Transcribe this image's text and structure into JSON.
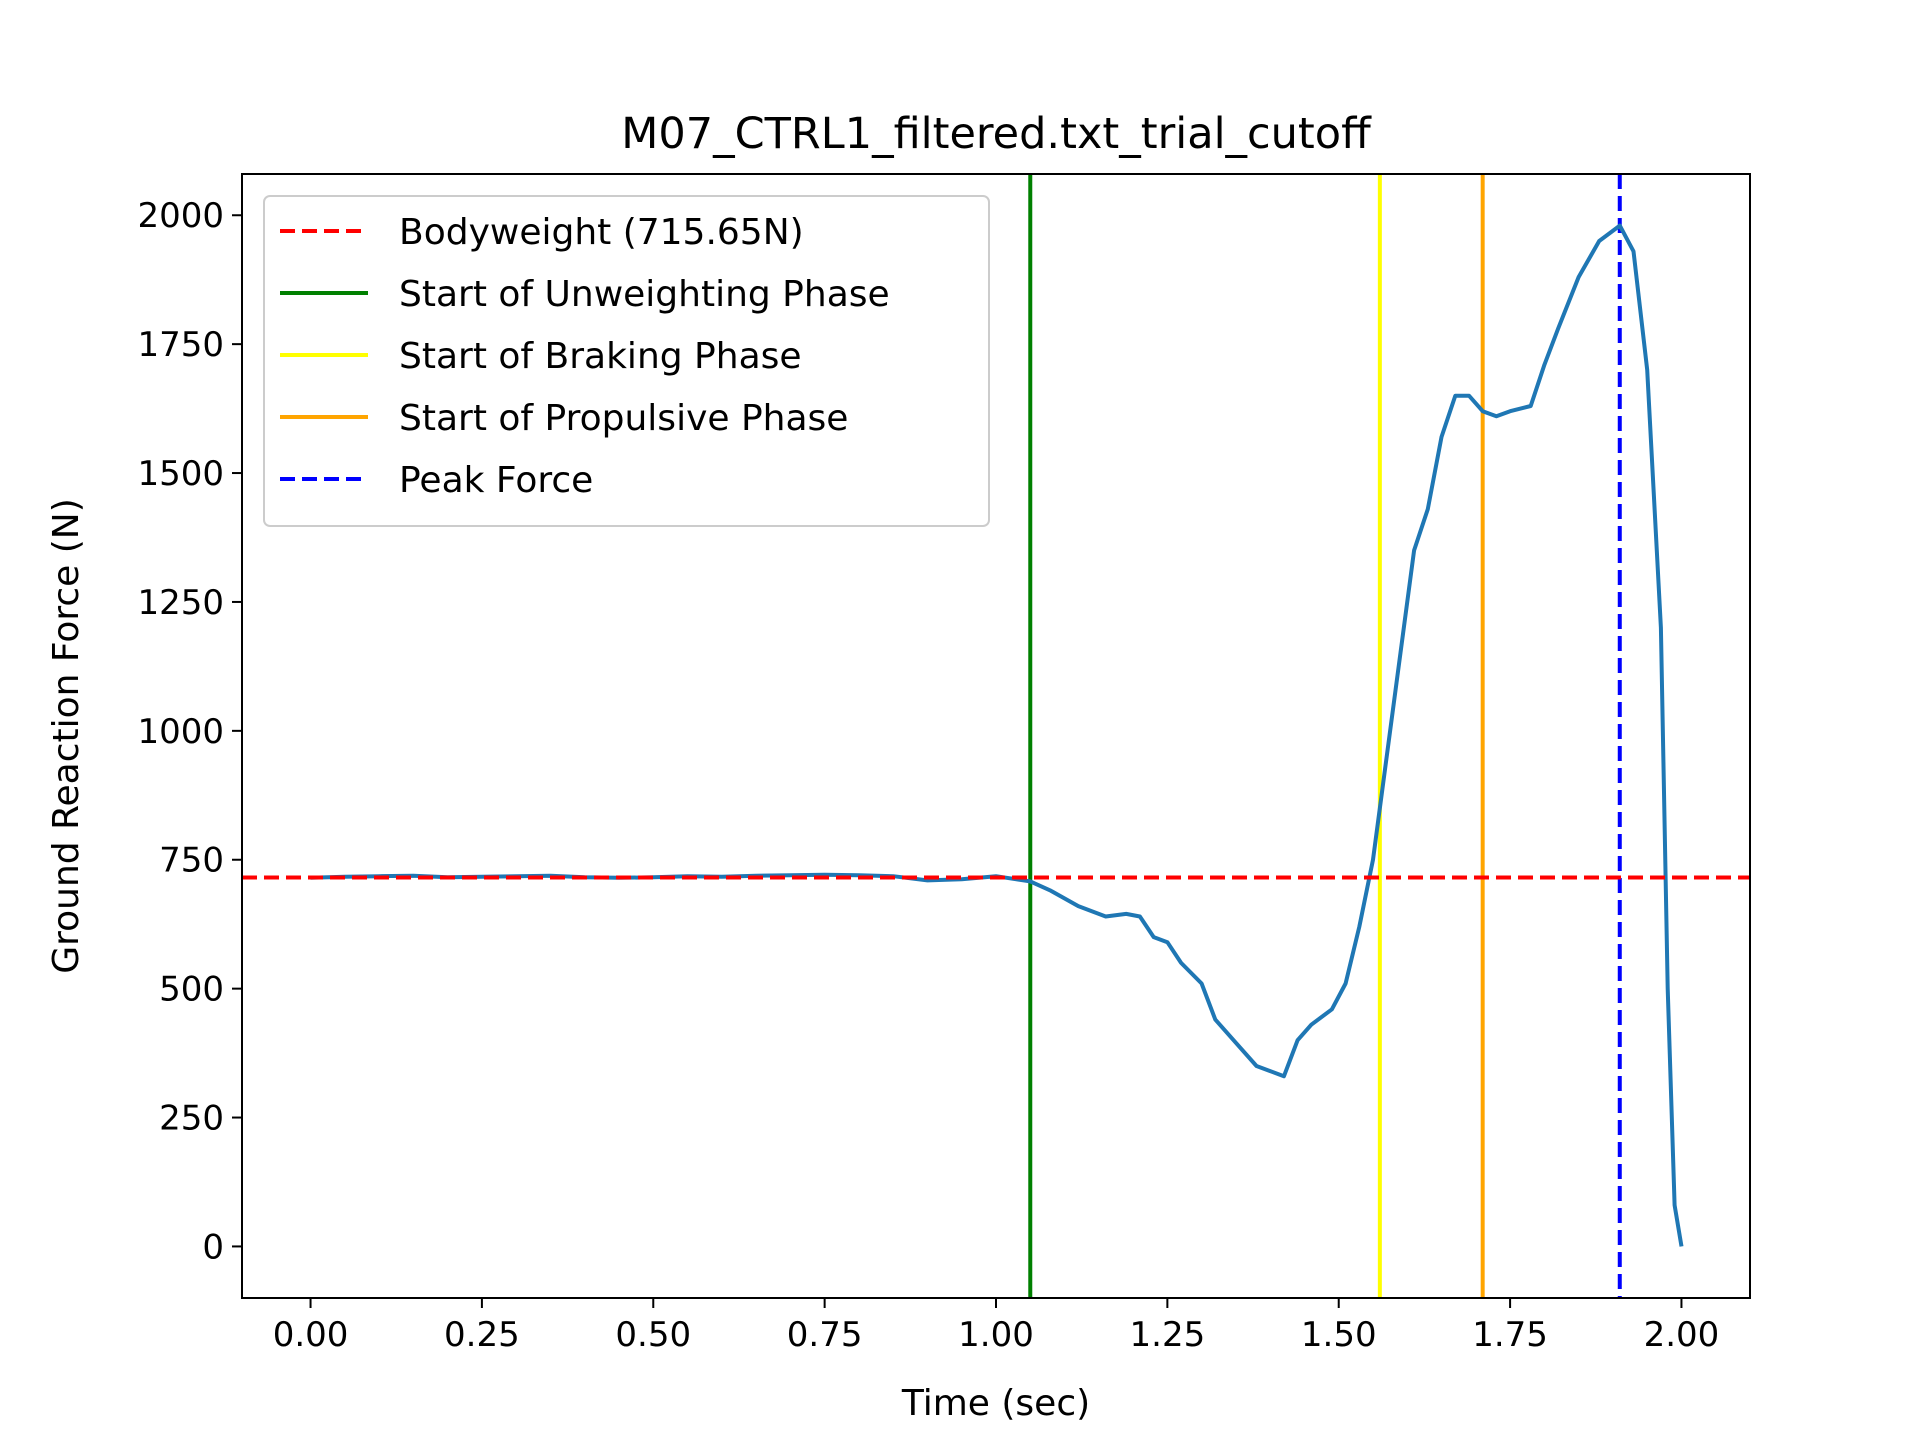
{
  "chart_data": {
    "type": "line",
    "title": "M07_CTRL1_filtered.txt_trial_cutoff",
    "xlabel": "Time (sec)",
    "ylabel": "Ground Reaction Force (N)",
    "xlim": [
      -0.1,
      2.1
    ],
    "ylim": [
      -100,
      2080
    ],
    "xticks": [
      0.0,
      0.25,
      0.5,
      0.75,
      1.0,
      1.25,
      1.5,
      1.75,
      2.0
    ],
    "xtick_labels": [
      "0.00",
      "0.25",
      "0.50",
      "0.75",
      "1.00",
      "1.25",
      "1.50",
      "1.75",
      "2.00"
    ],
    "yticks": [
      0,
      250,
      500,
      750,
      1000,
      1250,
      1500,
      1750,
      2000
    ],
    "ytick_labels": [
      "0",
      "250",
      "500",
      "750",
      "1000",
      "1250",
      "1500",
      "1750",
      "2000"
    ],
    "grid": false,
    "legend_position": "top-left",
    "series": [
      {
        "color": "#1f77b4",
        "x": [
          0.0,
          0.05,
          0.1,
          0.15,
          0.2,
          0.25,
          0.3,
          0.35,
          0.4,
          0.45,
          0.5,
          0.55,
          0.6,
          0.65,
          0.7,
          0.75,
          0.8,
          0.85,
          0.9,
          0.95,
          1.0,
          1.05,
          1.08,
          1.12,
          1.16,
          1.19,
          1.21,
          1.23,
          1.25,
          1.27,
          1.3,
          1.32,
          1.35,
          1.38,
          1.4,
          1.42,
          1.44,
          1.46,
          1.49,
          1.51,
          1.53,
          1.55,
          1.57,
          1.59,
          1.61,
          1.63,
          1.65,
          1.67,
          1.69,
          1.71,
          1.73,
          1.75,
          1.78,
          1.8,
          1.82,
          1.85,
          1.88,
          1.91,
          1.93,
          1.95,
          1.97,
          1.98,
          1.99,
          2.0
        ],
        "y": [
          715,
          717,
          718,
          719,
          716,
          717,
          718,
          719,
          716,
          715,
          716,
          718,
          717,
          719,
          720,
          721,
          720,
          718,
          710,
          712,
          718,
          708,
          690,
          660,
          640,
          645,
          640,
          600,
          590,
          550,
          510,
          440,
          395,
          350,
          340,
          330,
          400,
          430,
          460,
          510,
          620,
          750,
          950,
          1150,
          1350,
          1430,
          1570,
          1650,
          1650,
          1620,
          1610,
          1620,
          1630,
          1710,
          1780,
          1880,
          1950,
          1980,
          1930,
          1700,
          1200,
          500,
          80,
          0
        ]
      }
    ],
    "reference_lines": [
      {
        "name": "Bodyweight (715.65N)",
        "orientation": "horizontal",
        "value": 715.65,
        "color": "#ff0000",
        "style": "dashed"
      },
      {
        "name": "Start of Unweighting Phase",
        "orientation": "vertical",
        "value": 1.05,
        "color": "#008000",
        "style": "solid"
      },
      {
        "name": "Start of Braking Phase",
        "orientation": "vertical",
        "value": 1.56,
        "color": "#ffff00",
        "style": "solid"
      },
      {
        "name": "Start of Propulsive Phase",
        "orientation": "vertical",
        "value": 1.71,
        "color": "#ffa500",
        "style": "solid"
      },
      {
        "name": "Peak Force",
        "orientation": "vertical",
        "value": 1.91,
        "color": "#0000ff",
        "style": "dashed"
      }
    ]
  }
}
